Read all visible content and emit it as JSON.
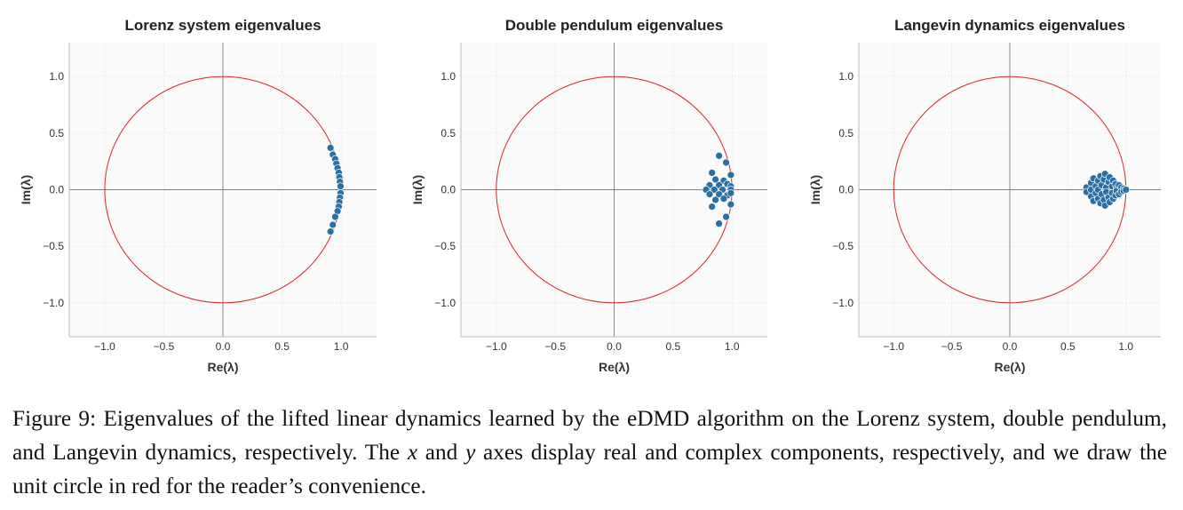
{
  "chart_data": [
    {
      "type": "scatter",
      "title": "Lorenz system eigenvalues",
      "xlabel": "Re(λ)",
      "ylabel": "Im(λ)",
      "xlim": [
        -1.3,
        1.3
      ],
      "ylim": [
        -1.3,
        1.3
      ],
      "xticks": [
        "−1.0",
        "−0.5",
        "0.0",
        "0.5",
        "1.0"
      ],
      "yticks": [
        "−1.0",
        "−0.5",
        "0.0",
        "0.5",
        "1.0"
      ],
      "grid": true,
      "unit_circle": true,
      "points": [
        [
          0.91,
          0.37
        ],
        [
          0.93,
          0.31
        ],
        [
          0.95,
          0.27
        ],
        [
          0.96,
          0.23
        ],
        [
          0.97,
          0.19
        ],
        [
          0.98,
          0.15
        ],
        [
          0.985,
          0.11
        ],
        [
          0.99,
          0.07
        ],
        [
          0.995,
          0.03
        ],
        [
          0.995,
          -0.03
        ],
        [
          0.99,
          -0.07
        ],
        [
          0.985,
          -0.11
        ],
        [
          0.98,
          -0.15
        ],
        [
          0.97,
          -0.19
        ],
        [
          0.95,
          -0.24
        ],
        [
          0.93,
          -0.31
        ],
        [
          0.91,
          -0.37
        ]
      ]
    },
    {
      "type": "scatter",
      "title": "Double pendulum eigenvalues",
      "xlabel": "Re(λ)",
      "ylabel": "Im(λ)",
      "xlim": [
        -1.3,
        1.3
      ],
      "ylim": [
        -1.3,
        1.3
      ],
      "xticks": [
        "−1.0",
        "−0.5",
        "0.0",
        "0.5",
        "1.0"
      ],
      "yticks": [
        "−1.0",
        "−0.5",
        "0.0",
        "0.5",
        "1.0"
      ],
      "grid": true,
      "unit_circle": true,
      "points": [
        [
          0.89,
          0.3
        ],
        [
          0.95,
          0.24
        ],
        [
          0.83,
          0.15
        ],
        [
          0.99,
          0.13
        ],
        [
          0.86,
          0.09
        ],
        [
          0.93,
          0.08
        ],
        [
          0.81,
          0.04
        ],
        [
          0.89,
          0.04
        ],
        [
          0.96,
          0.05
        ],
        [
          0.99,
          0.03
        ],
        [
          0.78,
          0.0
        ],
        [
          0.85,
          0.0
        ],
        [
          0.92,
          0.0
        ],
        [
          0.99,
          0.0
        ],
        [
          0.81,
          -0.04
        ],
        [
          0.89,
          -0.04
        ],
        [
          0.96,
          -0.05
        ],
        [
          0.99,
          -0.03
        ],
        [
          0.86,
          -0.09
        ],
        [
          0.93,
          -0.08
        ],
        [
          0.83,
          -0.15
        ],
        [
          0.99,
          -0.13
        ],
        [
          0.95,
          -0.24
        ],
        [
          0.89,
          -0.3
        ]
      ]
    },
    {
      "type": "scatter",
      "title": "Langevin dynamics eigenvalues",
      "xlabel": "Re(λ)",
      "ylabel": "Im(λ)",
      "xlim": [
        -1.3,
        1.3
      ],
      "ylim": [
        -1.3,
        1.3
      ],
      "xticks": [
        "−1.0",
        "−0.5",
        "0.0",
        "0.5",
        "1.0"
      ],
      "yticks": [
        "−1.0",
        "−0.5",
        "0.0",
        "0.5",
        "1.0"
      ],
      "grid": true,
      "unit_circle": true,
      "points": [
        [
          0.66,
          0.02
        ],
        [
          0.66,
          -0.02
        ],
        [
          0.7,
          0.06
        ],
        [
          0.7,
          0.0
        ],
        [
          0.7,
          -0.06
        ],
        [
          0.72,
          0.1
        ],
        [
          0.72,
          -0.1
        ],
        [
          0.74,
          0.03
        ],
        [
          0.74,
          -0.03
        ],
        [
          0.76,
          0.08
        ],
        [
          0.76,
          0.0
        ],
        [
          0.76,
          -0.08
        ],
        [
          0.78,
          0.12
        ],
        [
          0.78,
          -0.12
        ],
        [
          0.79,
          0.04
        ],
        [
          0.79,
          -0.04
        ],
        [
          0.81,
          0.09
        ],
        [
          0.81,
          -0.09
        ],
        [
          0.82,
          0.14
        ],
        [
          0.82,
          -0.14
        ],
        [
          0.83,
          0.02
        ],
        [
          0.83,
          -0.02
        ],
        [
          0.85,
          0.07
        ],
        [
          0.85,
          -0.07
        ],
        [
          0.86,
          0.11
        ],
        [
          0.86,
          -0.11
        ],
        [
          0.88,
          0.03
        ],
        [
          0.88,
          -0.03
        ],
        [
          0.89,
          0.08
        ],
        [
          0.89,
          -0.08
        ],
        [
          0.91,
          0.05
        ],
        [
          0.91,
          -0.05
        ],
        [
          0.92,
          0.01
        ],
        [
          0.92,
          -0.01
        ],
        [
          0.94,
          0.04
        ],
        [
          0.94,
          -0.04
        ],
        [
          0.96,
          0.02
        ],
        [
          0.96,
          -0.02
        ],
        [
          0.98,
          0.01
        ],
        [
          0.98,
          -0.01
        ],
        [
          1.0,
          0.0
        ]
      ]
    }
  ],
  "caption": {
    "part1": "Figure 9: Eigenvalues of the lifted linear dynamics learned by the eDMD algorithm on the Lorenz system, double pendulum, and Langevin dynamics, respectively.  The ",
    "var_x": "x",
    "part2": " and ",
    "var_y": "y",
    "part3": " axes display real and complex components, respectively, and we draw the unit circle in red for the reader’s convenience."
  },
  "colors": {
    "point_fill": "#2b6fa3",
    "point_stroke": "#ffffff",
    "unit_circle": "#d62728",
    "axes_line": "#808080",
    "grid": "#e6e6e6",
    "panel_background": "#fafafa"
  }
}
